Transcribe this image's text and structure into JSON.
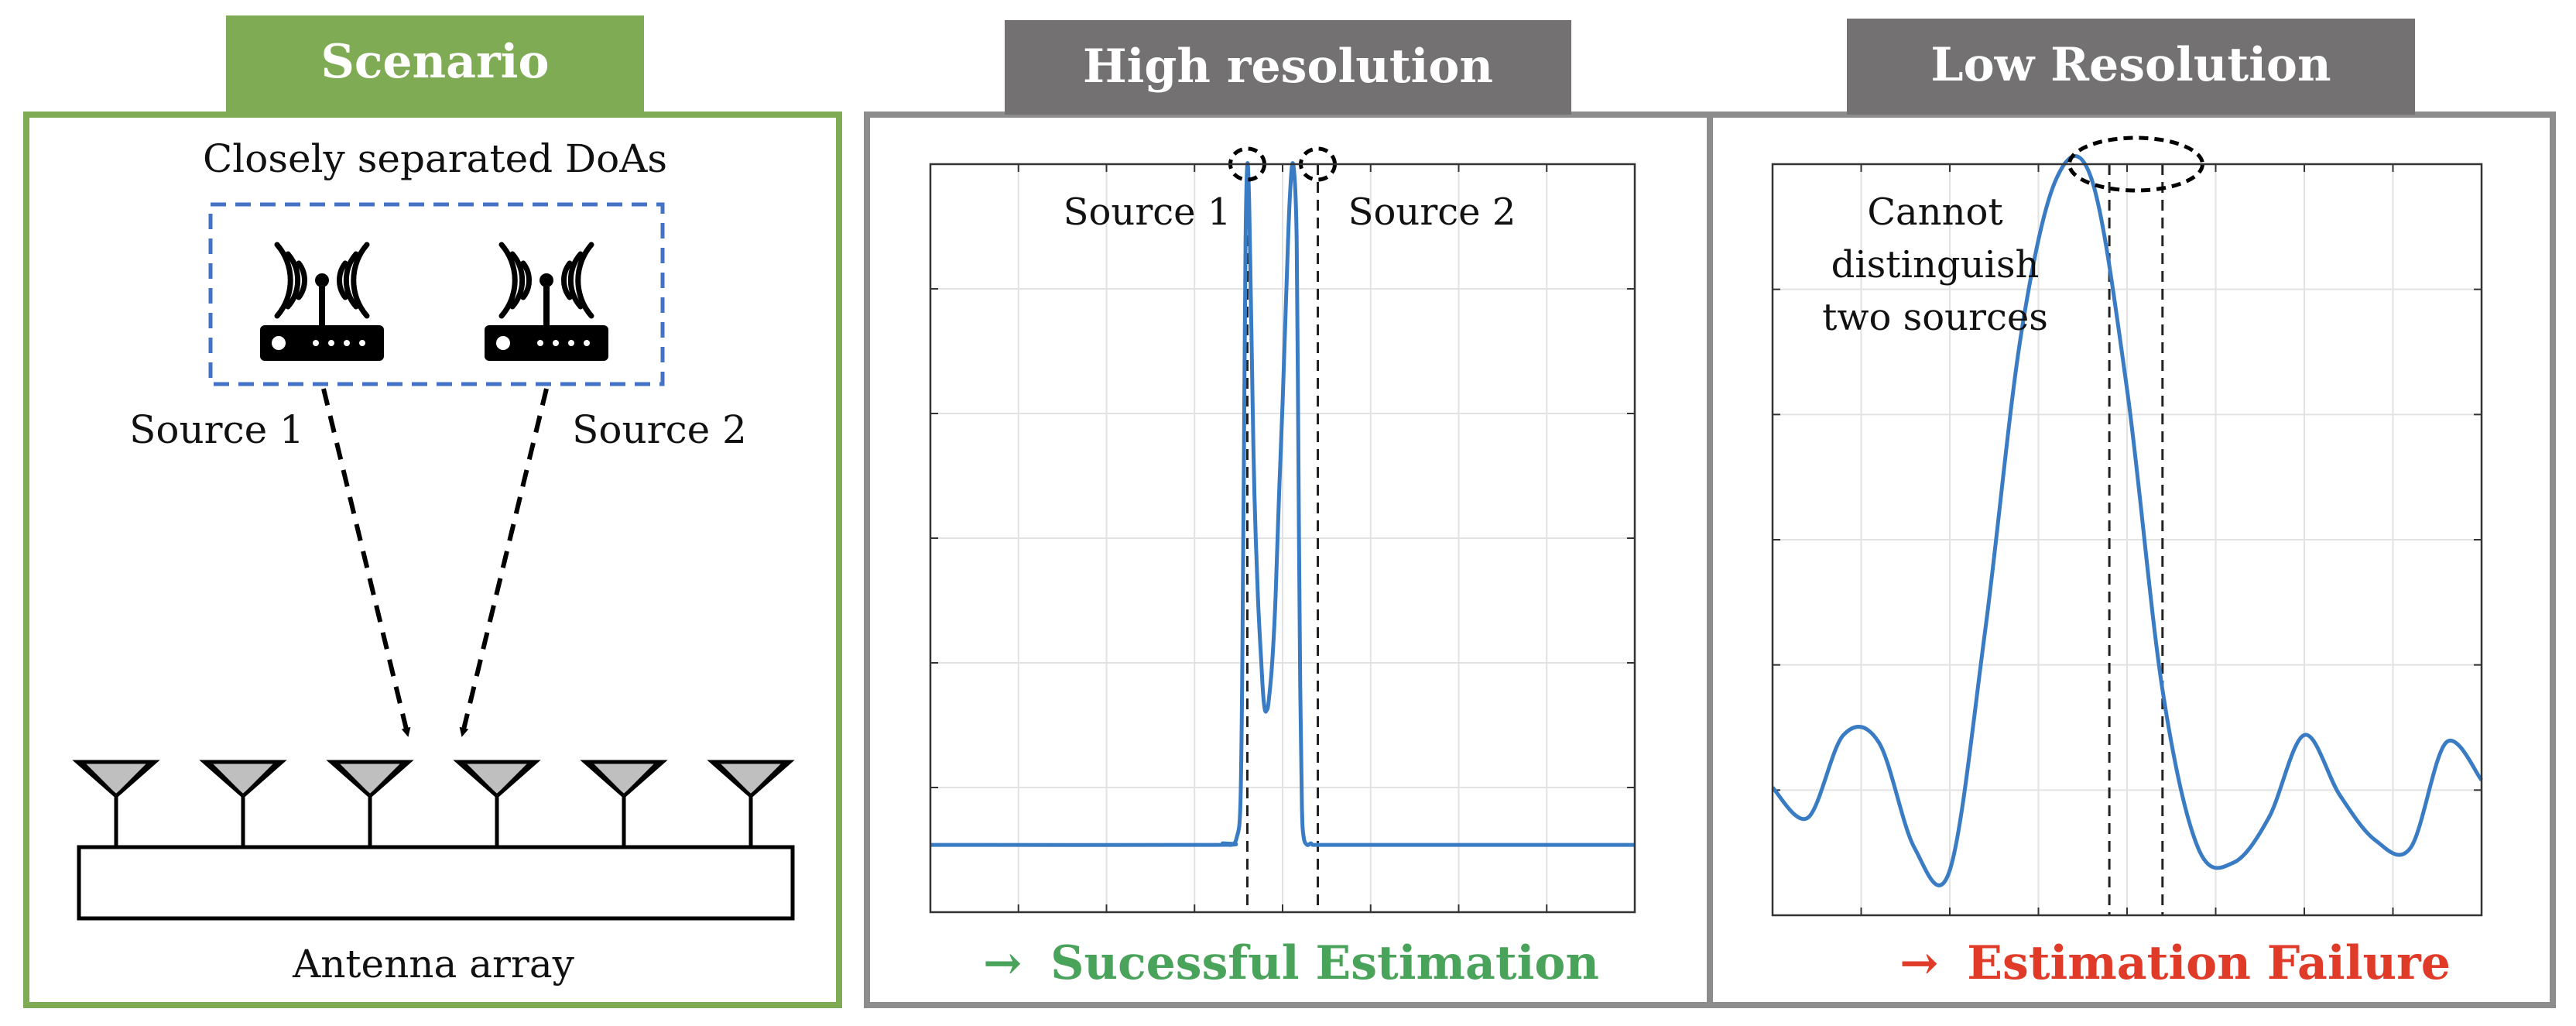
{
  "colors": {
    "scenario_green": "#7fab55",
    "panel_gray": "#737171",
    "panel_border": "#8c8c8c",
    "curve_blue": "#3a7cc4",
    "dashed_box_blue": "#4472c4",
    "success_green": "#4aa35a",
    "failure_red": "#e03a28",
    "antenna_gray": "#bfbfbf"
  },
  "scenario": {
    "tab_label": "Scenario",
    "box_caption": "Closely separated DoAs",
    "source1_label": "Source 1",
    "source2_label": "Source 2",
    "array_label": "Antenna array",
    "icons": [
      "router-icon",
      "router-icon"
    ],
    "antenna_count": 6
  },
  "high_res": {
    "tab_label": "High resolution",
    "source1_label": "Source 1",
    "source2_label": "Source 2",
    "status_arrow": "→",
    "status_text": "Sucessful Estimation"
  },
  "low_res": {
    "tab_label": "Low Resolution",
    "annotation_lines": [
      "Cannot",
      "distinguish",
      "two sources"
    ],
    "status_arrow": "→",
    "status_text": "Estimation Failure"
  },
  "chart_data": [
    {
      "type": "line",
      "title": "High resolution",
      "xlabel": "",
      "ylabel": "",
      "xlim": [
        -10,
        10
      ],
      "ylim": [
        0,
        1
      ],
      "grid": true,
      "source_positions": [
        -1,
        1
      ],
      "series": [
        {
          "name": "high-res spectrum",
          "x": [
            -10,
            -2,
            -1.7,
            -1.45,
            -1.3,
            -1.2,
            -1.15,
            -1.1,
            -1.05,
            -1.0,
            -0.95,
            -0.9,
            -0.85,
            -0.8,
            -0.7,
            -0.6,
            -0.55,
            -0.5,
            -0.45,
            -0.4,
            -0.3,
            -0.2,
            -0.1,
            0,
            0.1,
            0.2,
            0.3,
            0.4,
            0.45,
            0.5,
            0.55,
            0.6,
            0.7,
            0.8,
            0.85,
            0.9,
            0.95,
            1.0,
            1.05,
            1.1,
            1.15,
            1.2,
            1.3,
            1.45,
            1.7,
            2,
            10
          ],
          "y": [
            0.09,
            0.09,
            0.092,
            0.09,
            0.1,
            0.14,
            0.3,
            0.6,
            0.9,
            1.0,
            0.95,
            0.82,
            0.68,
            0.56,
            0.42,
            0.33,
            0.29,
            0.27,
            0.27,
            0.28,
            0.33,
            0.42,
            0.56,
            0.68,
            0.82,
            0.95,
            1.0,
            0.9,
            0.6,
            0.3,
            0.14,
            0.1,
            0.09,
            0.092,
            0.09,
            0.09,
            0.09,
            0.09,
            0.09,
            0.09,
            0.09,
            0.09,
            0.09,
            0.09,
            0.09,
            0.09,
            0.09
          ]
        }
      ]
    },
    {
      "type": "line",
      "title": "Low Resolution",
      "xlabel": "",
      "ylabel": "",
      "xlim": [
        -10,
        10
      ],
      "ylim": [
        0,
        1
      ],
      "grid": true,
      "source_positions": [
        -0.5,
        1
      ],
      "series": [
        {
          "name": "low-res spectrum",
          "x": [
            -10,
            -9,
            -8,
            -7,
            -6,
            -5,
            -4,
            -3,
            -2,
            -1,
            0,
            1,
            2,
            3,
            4,
            5,
            6,
            7,
            8,
            9,
            10
          ],
          "y": [
            0.17,
            0.13,
            0.24,
            0.23,
            0.09,
            0.06,
            0.38,
            0.77,
            0.98,
            0.98,
            0.7,
            0.3,
            0.09,
            0.07,
            0.13,
            0.24,
            0.16,
            0.1,
            0.09,
            0.23,
            0.18
          ]
        }
      ]
    }
  ]
}
